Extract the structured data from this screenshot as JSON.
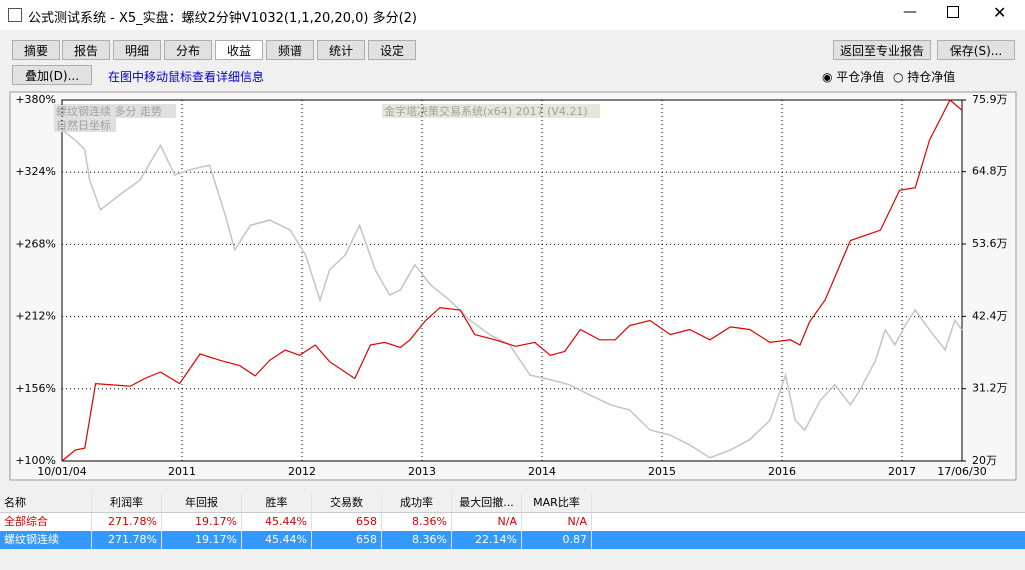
{
  "window": {
    "title": "公式测试系统 - X5_实盘：螺纹2分钟V1032(1,1,20,20,0) 多分(2)"
  },
  "toolbar": {
    "tabs": [
      "摘要",
      "报告",
      "明细",
      "分布",
      "收益",
      "频谱",
      "统计",
      "设定"
    ],
    "back": "返回至专业报告",
    "save": "保存(S)...",
    "overlay": "叠加(D)...",
    "hint": "在图中移动鼠标查看详细信息",
    "radios": [
      "平仓净值",
      "持仓净值"
    ]
  },
  "chart_data": {
    "type": "line",
    "annotations": [
      "螺纹钢连续 多分 走势",
      "自然日坐标",
      "金字塔决策交易系统(x64) 2017 (V4.21)"
    ],
    "xlim": [
      2010.0,
      2017.5
    ],
    "xticks": [
      {
        "value": 2010.0,
        "label": "10/01/04"
      },
      2011,
      2012,
      2013,
      2014,
      2015,
      2016,
      2017,
      {
        "value": 2017.5,
        "label": "17/06/30"
      }
    ],
    "ylim": [
      100,
      380
    ],
    "yticks": [
      {
        "value": 100,
        "label": "+100%"
      },
      {
        "value": 156,
        "label": "+156%"
      },
      {
        "value": 212,
        "label": "+212%"
      },
      {
        "value": 268,
        "label": "+268%"
      },
      {
        "value": 324,
        "label": "+324%"
      },
      {
        "value": 380,
        "label": "+380%"
      }
    ],
    "y2lim": [
      20,
      75.9
    ],
    "y2ticks": [
      {
        "value": 20,
        "label": "20万"
      },
      {
        "value": 31.2,
        "label": "31.2万"
      },
      {
        "value": 42.4,
        "label": "42.4万"
      },
      {
        "value": 53.6,
        "label": "53.6万"
      },
      {
        "value": 64.8,
        "label": "64.8万"
      },
      {
        "value": 75.9,
        "label": "75.9万"
      }
    ],
    "grid": true,
    "series": [
      {
        "color": "#e00000",
        "x": [
          2010.0,
          2010.11,
          2010.19,
          2010.28,
          2010.57,
          2010.69,
          2010.82,
          2010.98,
          2011.15,
          2011.32,
          2011.48,
          2011.61,
          2011.73,
          2011.86,
          2011.98,
          2012.11,
          2012.23,
          2012.44,
          2012.57,
          2012.69,
          2012.82,
          2012.9,
          2013.03,
          2013.15,
          2013.32,
          2013.44,
          2013.61,
          2013.78,
          2013.94,
          2014.07,
          2014.19,
          2014.32,
          2014.48,
          2014.61,
          2014.73,
          2014.9,
          2015.07,
          2015.23,
          2015.4,
          2015.57,
          2015.73,
          2015.9,
          2016.07,
          2016.15,
          2016.23,
          2016.36,
          2016.57,
          2016.82,
          2016.98,
          2017.11,
          2017.23,
          2017.4,
          2017.5
        ],
        "values": [
          100,
          108.5,
          110,
          160,
          158,
          164,
          169,
          160,
          183,
          178,
          174,
          166,
          178,
          186,
          182,
          190,
          177,
          164,
          190,
          192,
          188,
          194,
          209,
          219,
          217,
          198,
          194,
          189,
          192,
          182,
          185,
          202,
          194,
          194,
          205,
          209,
          198,
          202,
          194,
          204,
          202,
          192,
          194,
          190,
          208,
          225,
          271,
          279,
          310,
          312,
          349,
          380,
          372
        ]
      },
      {
        "color": "#c4c4c4",
        "axis": "y2",
        "x": [
          2010.0,
          2010.11,
          2010.19,
          2010.23,
          2010.32,
          2010.48,
          2010.65,
          2010.82,
          2010.94,
          2011.07,
          2011.23,
          2011.36,
          2011.44,
          2011.57,
          2011.73,
          2011.9,
          2012.03,
          2012.15,
          2012.23,
          2012.36,
          2012.48,
          2012.61,
          2012.73,
          2012.82,
          2012.94,
          2013.07,
          2013.23,
          2013.4,
          2013.57,
          2013.73,
          2013.9,
          2014.07,
          2014.23,
          2014.4,
          2014.57,
          2014.73,
          2014.9,
          2015.07,
          2015.23,
          2015.4,
          2015.57,
          2015.73,
          2015.9,
          2016.03,
          2016.11,
          2016.19,
          2016.32,
          2016.44,
          2016.57,
          2016.65,
          2016.78,
          2016.86,
          2016.94,
          2017.03,
          2017.11,
          2017.23,
          2017.36,
          2017.44,
          2017.5
        ],
        "values": [
          71.3,
          69.7,
          68.2,
          63.5,
          58.9,
          61.2,
          63.5,
          68.9,
          64.3,
          65.1,
          65.8,
          58.1,
          52.7,
          56.5,
          57.3,
          55.8,
          51.9,
          44.9,
          49.6,
          51.9,
          56.5,
          49.6,
          45.7,
          46.5,
          50.4,
          47.3,
          44.9,
          41.8,
          39.5,
          38.0,
          33.3,
          32.6,
          31.8,
          30.2,
          28.7,
          27.9,
          24.8,
          24.0,
          22.5,
          20.5,
          21.7,
          23.3,
          26.3,
          33.3,
          26.3,
          24.8,
          29.4,
          31.8,
          28.7,
          31.0,
          35.6,
          40.3,
          38.0,
          41.1,
          43.4,
          40.3,
          37.2,
          41.8,
          40.3
        ]
      }
    ]
  },
  "table": {
    "header": [
      "名称",
      "利润率",
      "年回报",
      "胜率",
      "交易数",
      "成功率",
      "最大回撤...",
      "MAR比率"
    ],
    "rows": [
      [
        "全部综合",
        "271.78%",
        "19.17%",
        "45.44%",
        "658",
        "8.36%",
        "N/A",
        "N/A"
      ],
      [
        "螺纹钢连续",
        "271.78%",
        "19.17%",
        "45.44%",
        "658",
        "8.36%",
        "22.14%",
        "0.87"
      ]
    ]
  }
}
